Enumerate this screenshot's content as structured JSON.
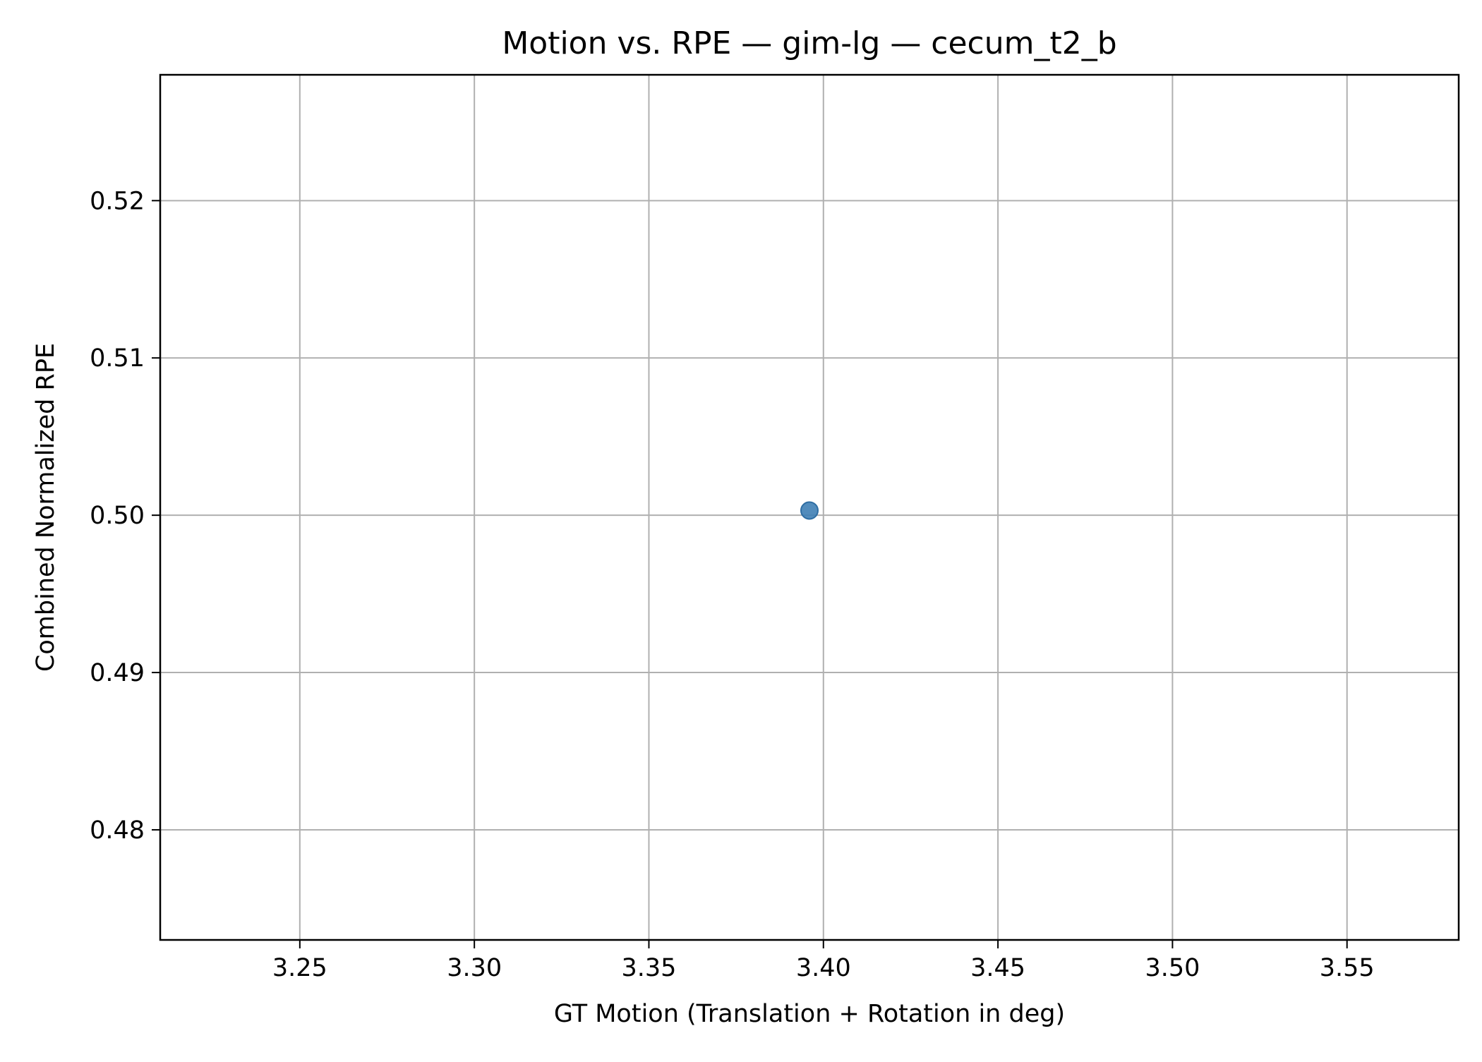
{
  "chart_data": {
    "type": "scatter",
    "title": "Motion vs. RPE — gim-lg — cecum_t2_b",
    "xlabel": "GT Motion (Translation + Rotation in deg)",
    "ylabel": "Combined Normalized RPE",
    "xlim": [
      3.21,
      3.582
    ],
    "ylim": [
      0.473,
      0.528
    ],
    "xticks": [
      3.25,
      3.3,
      3.35,
      3.4,
      3.45,
      3.5,
      3.55
    ],
    "xtick_labels": [
      "3.25",
      "3.30",
      "3.35",
      "3.40",
      "3.45",
      "3.50",
      "3.55"
    ],
    "yticks": [
      0.48,
      0.49,
      0.5,
      0.51,
      0.52
    ],
    "ytick_labels": [
      "0.48",
      "0.49",
      "0.50",
      "0.51",
      "0.52"
    ],
    "grid": true,
    "legend": "none",
    "series": [
      {
        "color": "#3f7fb5",
        "points": [
          {
            "x": 3.396,
            "y": 0.5003
          }
        ]
      }
    ]
  }
}
